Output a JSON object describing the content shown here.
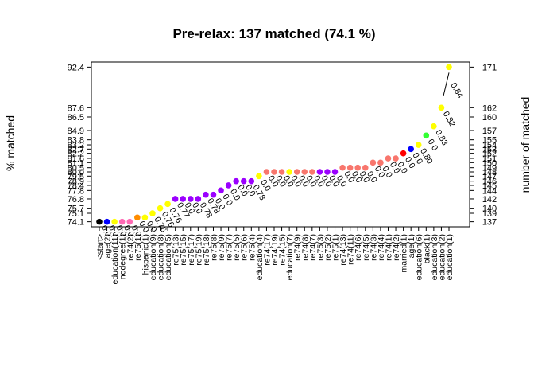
{
  "chart_data": {
    "type": "scatter",
    "title": "Pre-relax: 137 matched (74.1 %)",
    "xlabel": "",
    "ylabel": "% matched",
    "ylabel_right": "number of matched",
    "ylim": [
      73.5,
      93.0
    ],
    "left_ticks": [
      "74.1",
      "75.1",
      "75.7",
      "76.8",
      "77.8",
      "78.4",
      "78.9",
      "79.5",
      "80.0",
      "80.5",
      "81.1",
      "81.6",
      "82.2",
      "82.7",
      "83.2",
      "83.8",
      "84.9",
      "86.5",
      "87.6",
      "92.4"
    ],
    "right_ticks": [
      "137",
      "139",
      "140",
      "142",
      "144",
      "145",
      "146",
      "147",
      "148",
      "149",
      "150",
      "151",
      "152",
      "153",
      "154",
      "155",
      "157",
      "160",
      "162",
      "171"
    ],
    "categories": [
      "<start>",
      "age(2)",
      "education(11)",
      "nodegree(1)",
      "re74(2)",
      "re75(1)",
      "hispanic(1)",
      "education(9)",
      "education(8)",
      "education(5)",
      "re75(13)",
      "re75(15)",
      "re75(17)",
      "re75(19)",
      "re75(18)",
      "re75(8)",
      "re75(9)",
      "re75(7)",
      "re75(5)",
      "re75(6)",
      "re75(4)",
      "education(4)",
      "re74(17)",
      "re74(19)",
      "re74(15)",
      "education(7)",
      "re74(9)",
      "re74(8)",
      "re74(7)",
      "re75(3)",
      "re75(2)",
      "re75(1)",
      "re74(13)",
      "re74(11)",
      "re74(6)",
      "re74(5)",
      "re74(3)",
      "re74(4)",
      "re74(1)",
      "re74(2)",
      "married(1)",
      "age(1)",
      "education(6)",
      "black(1)",
      "education(3)",
      "education(2)",
      "education(1)"
    ],
    "values": [
      74.1,
      74.1,
      74.1,
      74.1,
      74.1,
      74.6,
      74.6,
      75.1,
      75.7,
      76.2,
      76.8,
      76.8,
      76.8,
      76.8,
      77.3,
      77.3,
      77.8,
      78.4,
      78.9,
      78.9,
      78.9,
      79.5,
      80.0,
      80.0,
      80.0,
      80.0,
      80.0,
      80.0,
      80.0,
      80.0,
      80.0,
      80.0,
      80.5,
      80.5,
      80.5,
      80.5,
      81.1,
      81.1,
      81.6,
      81.6,
      82.2,
      82.7,
      83.2,
      84.3,
      85.4,
      87.6,
      92.4
    ],
    "colors": [
      "#000000",
      "#0000ff",
      "#ffff00",
      "#ff69b4",
      "#ff69b4",
      "#ff8c00",
      "#ffff00",
      "#ffff00",
      "#ffff00",
      "#ffff00",
      "#9b00ff",
      "#9b00ff",
      "#9b00ff",
      "#9b00ff",
      "#9b00ff",
      "#9b00ff",
      "#9b00ff",
      "#9b00ff",
      "#9b00ff",
      "#9b00ff",
      "#9b00ff",
      "#ffff00",
      "#f8766d",
      "#f8766d",
      "#f8766d",
      "#ffff00",
      "#f8766d",
      "#f8766d",
      "#f8766d",
      "#9b00ff",
      "#9b00ff",
      "#9b00ff",
      "#f8766d",
      "#f8766d",
      "#f8766d",
      "#f8766d",
      "#f8766d",
      "#f8766d",
      "#f8766d",
      "#f8766d",
      "#ff0000",
      "#0000ff",
      "#ffff00",
      "#33ff33",
      "#ffff00",
      "#ffff00",
      "#ffff00"
    ],
    "point_labels": [
      "0.0",
      "0.0",
      "0.0",
      "0.0",
      "0.0",
      "0.0",
      "0.0",
      "0.76",
      "0.76",
      "0.76",
      "0.77",
      "0.0",
      "0.0",
      "0.78",
      "0.78",
      "0.0",
      "0.0",
      "0.0",
      "0.0",
      "0.0",
      "0.78",
      "0.0",
      "0.0",
      "0.0",
      "0.0",
      "0.0",
      "0.0",
      "0.0",
      "0.0",
      "0.0",
      "0.0",
      "0.0",
      "0.0",
      "0.0",
      "0.0",
      "0.0",
      "0.0",
      "0.0",
      "0.0",
      "0.0",
      "0.0",
      "0.0",
      "0.80",
      "0.0",
      "0.83",
      "0.82",
      "0.84"
    ],
    "grid": false,
    "legend": "none"
  }
}
